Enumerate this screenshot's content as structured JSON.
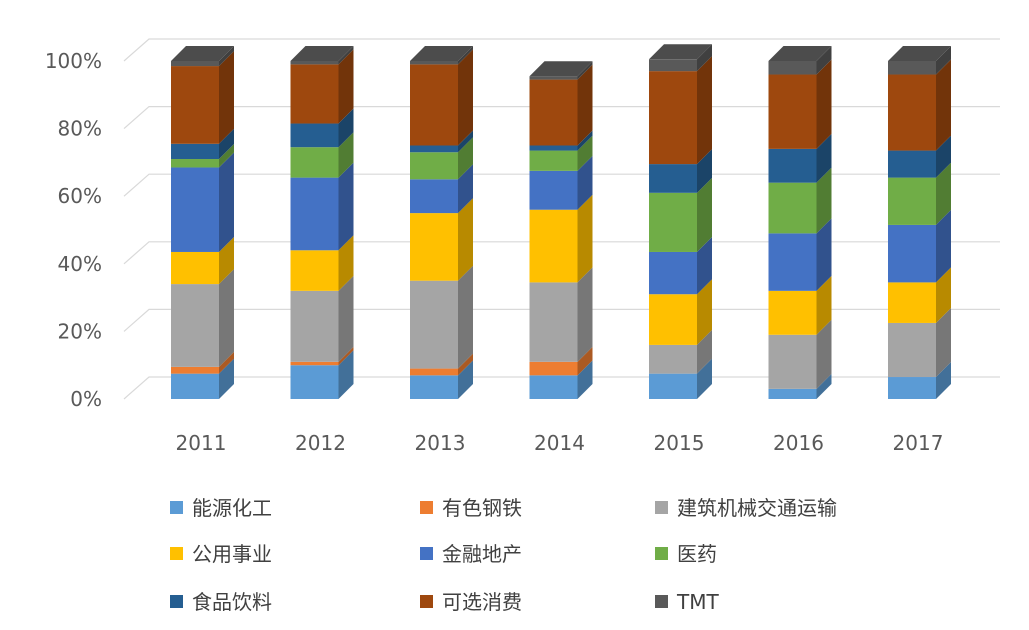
{
  "chart_data": {
    "type": "bar",
    "stacked": true,
    "three_d": true,
    "categories": [
      "2011",
      "2012",
      "2013",
      "2014",
      "2015",
      "2016",
      "2017"
    ],
    "ylim": [
      0,
      100
    ],
    "yticks": [
      "0%",
      "20%",
      "40%",
      "60%",
      "80%",
      "100%"
    ],
    "grid": true,
    "legend_position": "bottom",
    "series": [
      {
        "name": "能源化工",
        "color": "#5B9BD5",
        "values": [
          7.5,
          10,
          7,
          7,
          7.5,
          3,
          6.5
        ]
      },
      {
        "name": "有色钢铁",
        "color": "#ED7D31",
        "values": [
          2,
          1,
          2,
          4,
          0,
          0,
          0
        ]
      },
      {
        "name": "建筑机械交通运输",
        "color": "#A5A5A5",
        "values": [
          24.5,
          21,
          26,
          23.5,
          8.5,
          16,
          16
        ]
      },
      {
        "name": "公用事业",
        "color": "#FFC000",
        "values": [
          9.5,
          12,
          20,
          21.5,
          15,
          13,
          12
        ]
      },
      {
        "name": "金融地产",
        "color": "#4472C4",
        "values": [
          25,
          21.5,
          10,
          11.5,
          12.5,
          17,
          17
        ]
      },
      {
        "name": "医药",
        "color": "#70AD47",
        "values": [
          2.5,
          9,
          8,
          6,
          17.5,
          15,
          14
        ]
      },
      {
        "name": "食品饮料",
        "color": "#255E91",
        "values": [
          4.5,
          7,
          2,
          1.5,
          8.5,
          10,
          8
        ]
      },
      {
        "name": "可选消费",
        "color": "#9E480E",
        "values": [
          23,
          17.5,
          24,
          19.5,
          27.5,
          22,
          22.5
        ]
      },
      {
        "name": "TMT",
        "color": "#595959",
        "values": [
          1.5,
          1,
          1,
          1,
          3.5,
          4,
          4
        ]
      }
    ]
  }
}
